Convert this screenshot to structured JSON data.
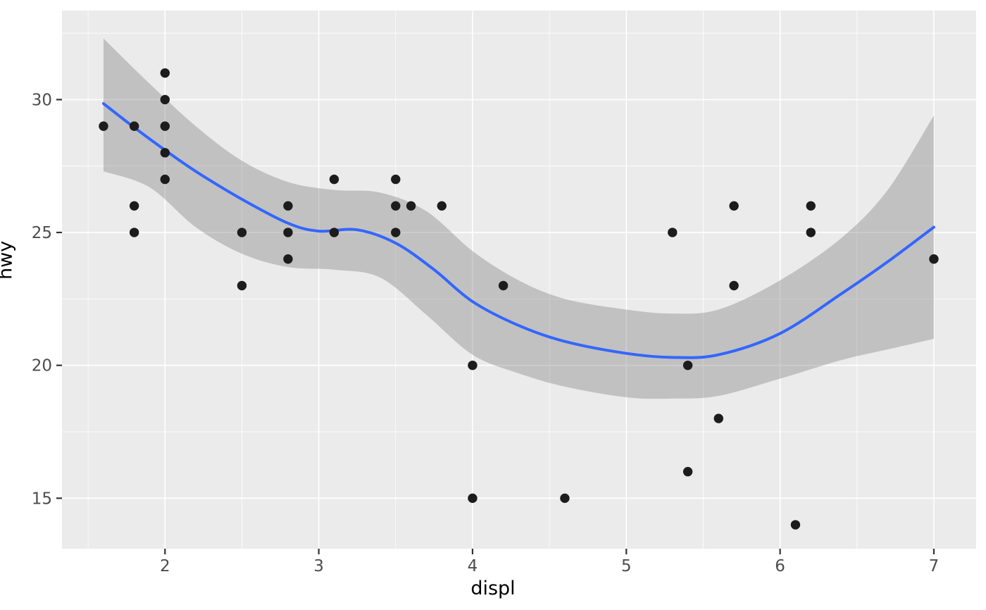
{
  "chart_data": {
    "type": "scatter",
    "title": "",
    "xlabel": "displ",
    "ylabel": "hwy",
    "xlim": [
      1.33,
      7.275
    ],
    "ylim": [
      13.1,
      33.35
    ],
    "grid": true,
    "legend_position": "none",
    "x_major_ticks": [
      2,
      3,
      4,
      5,
      6,
      7
    ],
    "x_minor_ticks": [
      1.5,
      2.5,
      3.5,
      4.5,
      5.5,
      6.5
    ],
    "y_major_ticks": [
      15,
      20,
      25,
      30
    ],
    "y_minor_ticks": [
      17.5,
      22.5,
      27.5,
      32.5
    ],
    "x_tick_labels": [
      "2",
      "3",
      "4",
      "5",
      "6",
      "7"
    ],
    "y_tick_labels": [
      "15",
      "20",
      "25",
      "30"
    ],
    "points": [
      [
        1.6,
        29
      ],
      [
        1.8,
        29
      ],
      [
        1.8,
        26
      ],
      [
        1.8,
        25
      ],
      [
        2.0,
        31
      ],
      [
        2.0,
        30
      ],
      [
        2.0,
        29
      ],
      [
        2.0,
        28
      ],
      [
        2.0,
        27
      ],
      [
        2.5,
        25
      ],
      [
        2.5,
        23
      ],
      [
        2.8,
        26
      ],
      [
        2.8,
        25
      ],
      [
        2.8,
        24
      ],
      [
        3.1,
        27
      ],
      [
        3.1,
        25
      ],
      [
        3.5,
        27
      ],
      [
        3.5,
        26
      ],
      [
        3.5,
        25
      ],
      [
        3.6,
        26
      ],
      [
        3.8,
        26
      ],
      [
        4.0,
        20
      ],
      [
        4.0,
        15
      ],
      [
        4.2,
        23
      ],
      [
        4.6,
        15
      ],
      [
        5.3,
        25
      ],
      [
        5.4,
        20
      ],
      [
        5.4,
        16
      ],
      [
        5.6,
        18
      ],
      [
        5.7,
        26
      ],
      [
        5.7,
        23
      ],
      [
        6.1,
        14
      ],
      [
        6.2,
        26
      ],
      [
        6.2,
        25
      ],
      [
        7.0,
        24
      ]
    ],
    "smooth_line": {
      "name": "loess-smooth",
      "x": [
        1.6,
        1.8,
        2.0,
        2.2,
        2.5,
        2.8,
        3.0,
        3.25,
        3.5,
        3.75,
        4.0,
        4.3,
        4.6,
        5.0,
        5.3,
        5.6,
        6.0,
        6.4,
        6.7,
        7.0
      ],
      "y": [
        29.85,
        28.95,
        28.1,
        27.3,
        26.25,
        25.35,
        25.05,
        25.1,
        24.6,
        23.6,
        22.4,
        21.5,
        20.9,
        20.45,
        20.3,
        20.4,
        21.2,
        22.7,
        23.9,
        25.2
      ]
    },
    "ribbon": {
      "name": "confidence-interval",
      "x": [
        1.6,
        1.9,
        2.2,
        2.5,
        2.8,
        3.1,
        3.4,
        3.7,
        4.0,
        4.3,
        4.6,
        5.0,
        5.3,
        5.6,
        6.0,
        6.4,
        6.7,
        7.0
      ],
      "upper": [
        32.3,
        30.6,
        29.0,
        27.7,
        26.9,
        26.6,
        26.5,
        25.8,
        24.3,
        23.2,
        22.5,
        22.1,
        21.95,
        22.1,
        23.2,
        24.8,
        26.6,
        29.4
      ],
      "lower": [
        27.3,
        26.7,
        25.2,
        24.2,
        23.7,
        23.6,
        23.3,
        21.9,
        20.4,
        19.7,
        19.2,
        18.8,
        18.75,
        18.85,
        19.5,
        20.2,
        20.6,
        21.0
      ]
    },
    "colors": {
      "panel_bg": "#EBEBEB",
      "grid_line": "#FFFFFF",
      "point": "#1C1C1C",
      "smooth_line": "#3366FF",
      "ribbon_fill": "rgba(115,115,115,0.35)",
      "tick_label": "#4D4D4D",
      "tick_mark": "#333333",
      "axis_title": "#000000"
    }
  }
}
